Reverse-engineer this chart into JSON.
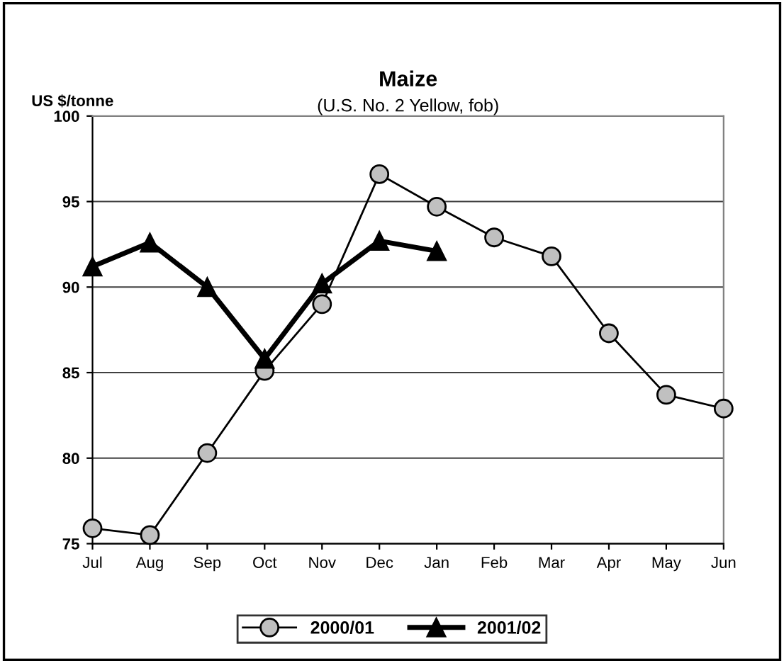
{
  "chart_data": {
    "type": "line",
    "title": "Maize",
    "subtitle": "(U.S. No. 2 Yellow, fob)",
    "ylabel": "US $/tonne",
    "categories": [
      "Jul",
      "Aug",
      "Sep",
      "Oct",
      "Nov",
      "Dec",
      "Jan",
      "Feb",
      "Mar",
      "Apr",
      "May",
      "Jun"
    ],
    "series": [
      {
        "name": "2000/01",
        "color": "#000000",
        "marker": "circle",
        "values": [
          75.9,
          75.5,
          80.3,
          85.1,
          89.0,
          96.6,
          94.7,
          92.9,
          91.8,
          87.3,
          83.7,
          82.9
        ]
      },
      {
        "name": "2001/02",
        "color": "#000000",
        "marker": "triangle",
        "values": [
          91.2,
          92.6,
          90.0,
          85.8,
          90.2,
          92.7,
          92.1,
          null,
          null,
          null,
          null,
          null
        ]
      }
    ],
    "ylim": [
      75,
      100
    ],
    "yticks": [
      75,
      80,
      85,
      90,
      95,
      100
    ],
    "grid": "y",
    "legend": "bottom"
  }
}
